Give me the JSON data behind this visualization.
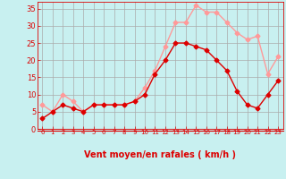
{
  "xlabel": "Vent moyen/en rafales ( km/h )",
  "background_color": "#c8f0f0",
  "grid_color": "#aaaaaa",
  "x_values": [
    0,
    1,
    2,
    3,
    4,
    5,
    6,
    7,
    8,
    9,
    10,
    11,
    12,
    13,
    14,
    15,
    16,
    17,
    18,
    19,
    20,
    21,
    22,
    23
  ],
  "mean_wind": [
    3,
    5,
    7,
    6,
    5,
    7,
    7,
    7,
    7,
    8,
    10,
    16,
    20,
    25,
    25,
    24,
    23,
    20,
    17,
    11,
    7,
    6,
    10,
    14
  ],
  "gust_wind": [
    7,
    5,
    10,
    8,
    5,
    7,
    7,
    7,
    7,
    8,
    12,
    17,
    24,
    31,
    31,
    36,
    34,
    34,
    31,
    28,
    26,
    27,
    16,
    21
  ],
  "mean_color": "#dd0000",
  "gust_color": "#ff9999",
  "tick_color": "#dd0000",
  "axis_label_color": "#dd0000",
  "ylim": [
    0,
    37
  ],
  "yticks": [
    0,
    5,
    10,
    15,
    20,
    25,
    30,
    35
  ],
  "marker_size": 2.5,
  "line_width": 1.0,
  "wind_arrows": [
    "↙",
    "↓",
    "↙",
    "↙",
    "↘",
    "↘",
    "↙",
    "↘",
    "←",
    "←",
    "↑",
    "↖",
    "↑",
    "↖",
    "↖",
    "↑",
    "↗",
    "↑",
    "↗",
    "↖",
    "→",
    "↘",
    "↙",
    "↘"
  ]
}
